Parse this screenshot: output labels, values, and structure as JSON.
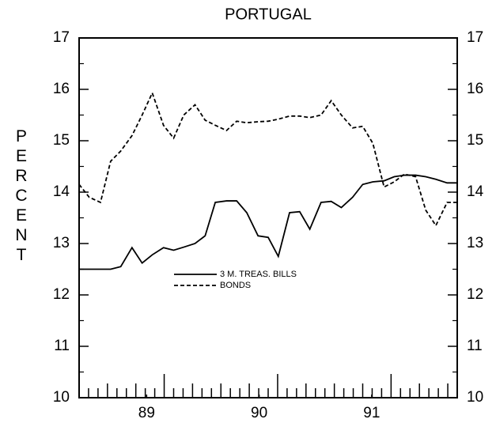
{
  "chart_data": {
    "type": "line",
    "title": "PORTUGAL",
    "y_label": "PER CENT",
    "x": [
      88.4,
      88.49,
      88.59,
      88.68,
      88.77,
      88.87,
      88.96,
      89.05,
      89.15,
      89.24,
      89.33,
      89.43,
      89.52,
      89.61,
      89.71,
      89.8,
      89.89,
      89.99,
      90.08,
      90.17,
      90.27,
      90.36,
      90.45,
      90.55,
      90.64,
      90.73,
      90.83,
      90.92,
      91.01,
      91.11,
      91.2,
      91.29,
      91.39,
      91.48,
      91.57,
      91.67,
      91.76
    ],
    "series": [
      {
        "name": "3 M. TREAS. BILLS",
        "color": "#000000",
        "dash": "solid",
        "values": [
          12.5,
          12.5,
          12.5,
          12.5,
          12.55,
          12.92,
          12.62,
          12.78,
          12.92,
          12.87,
          12.93,
          13.0,
          13.15,
          13.8,
          13.83,
          13.83,
          13.6,
          13.15,
          13.12,
          12.75,
          13.6,
          13.62,
          13.28,
          13.8,
          13.82,
          13.7,
          13.9,
          14.15,
          14.2,
          14.22,
          14.3,
          14.33,
          14.33,
          14.3,
          14.25,
          14.18,
          14.18
        ]
      },
      {
        "name": "BONDS",
        "color": "#000000",
        "dash": "dashed",
        "values": [
          14.15,
          13.9,
          13.8,
          14.6,
          14.8,
          15.1,
          15.5,
          15.93,
          15.3,
          15.05,
          15.5,
          15.7,
          15.4,
          15.3,
          15.2,
          15.38,
          15.35,
          15.37,
          15.38,
          15.42,
          15.48,
          15.48,
          15.45,
          15.5,
          15.78,
          15.5,
          15.25,
          15.28,
          14.95,
          14.1,
          14.2,
          14.35,
          14.3,
          13.65,
          13.35,
          13.8,
          13.8
        ]
      }
    ],
    "xlim": [
      88.4,
      91.76
    ],
    "xticks": [
      {
        "value": 89,
        "label": "89"
      },
      {
        "value": 90,
        "label": "90"
      },
      {
        "value": 91,
        "label": "91"
      }
    ],
    "ylim": [
      10,
      17
    ],
    "yticks": [
      10,
      11,
      12,
      13,
      14,
      15,
      16,
      17
    ],
    "grid": false
  }
}
